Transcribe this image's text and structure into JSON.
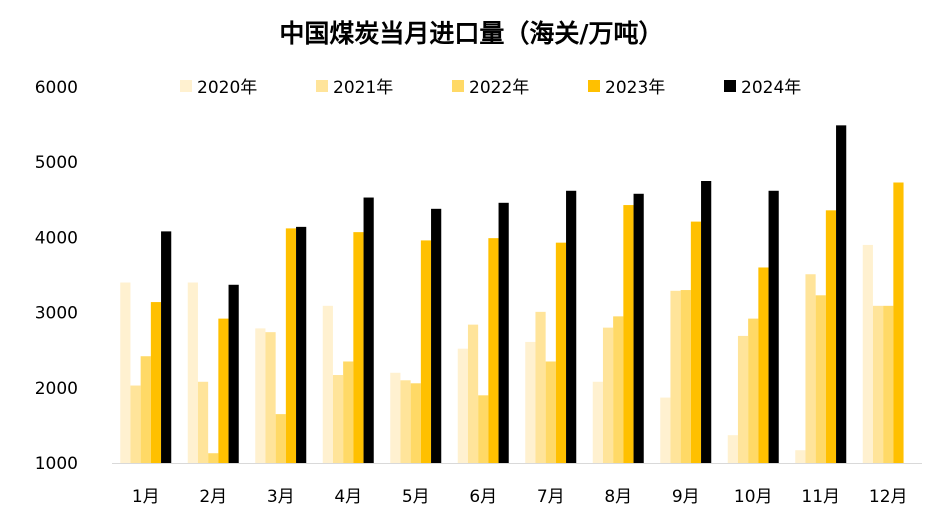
{
  "chart_data": {
    "type": "bar",
    "title": "中国煤炭当月进口量（海关/万吨）",
    "xlabel": "",
    "ylabel": "",
    "ylim": [
      1000,
      6000
    ],
    "yticks": [
      1000,
      2000,
      3000,
      4000,
      5000,
      6000
    ],
    "categories": [
      "1月",
      "2月",
      "3月",
      "4月",
      "5月",
      "6月",
      "7月",
      "8月",
      "9月",
      "10月",
      "11月",
      "12月"
    ],
    "legend_position": "top",
    "grid": false,
    "series": [
      {
        "name": "2020年",
        "color": "#FFF1D0",
        "values": [
          3400,
          3400,
          2790,
          3090,
          2200,
          2520,
          2610,
          2080,
          1870,
          1370,
          1170,
          3900
        ]
      },
      {
        "name": "2021年",
        "color": "#FFE49A",
        "values": [
          2030,
          2080,
          2740,
          2170,
          2100,
          2840,
          3010,
          2800,
          3290,
          2690,
          3510,
          3090
        ]
      },
      {
        "name": "2022年",
        "color": "#FFD966",
        "values": [
          2420,
          1130,
          1650,
          2350,
          2060,
          1900,
          2350,
          2950,
          3300,
          2920,
          3230,
          3090
        ]
      },
      {
        "name": "2023年",
        "color": "#FFC000",
        "values": [
          3140,
          2920,
          4120,
          4070,
          3960,
          3990,
          3930,
          4430,
          4210,
          3600,
          4360,
          4730
        ]
      },
      {
        "name": "2024年",
        "color": "#000000",
        "values": [
          4080,
          3370,
          4140,
          4530,
          4380,
          4460,
          4620,
          4580,
          4750,
          4620,
          5490,
          null
        ]
      }
    ]
  }
}
